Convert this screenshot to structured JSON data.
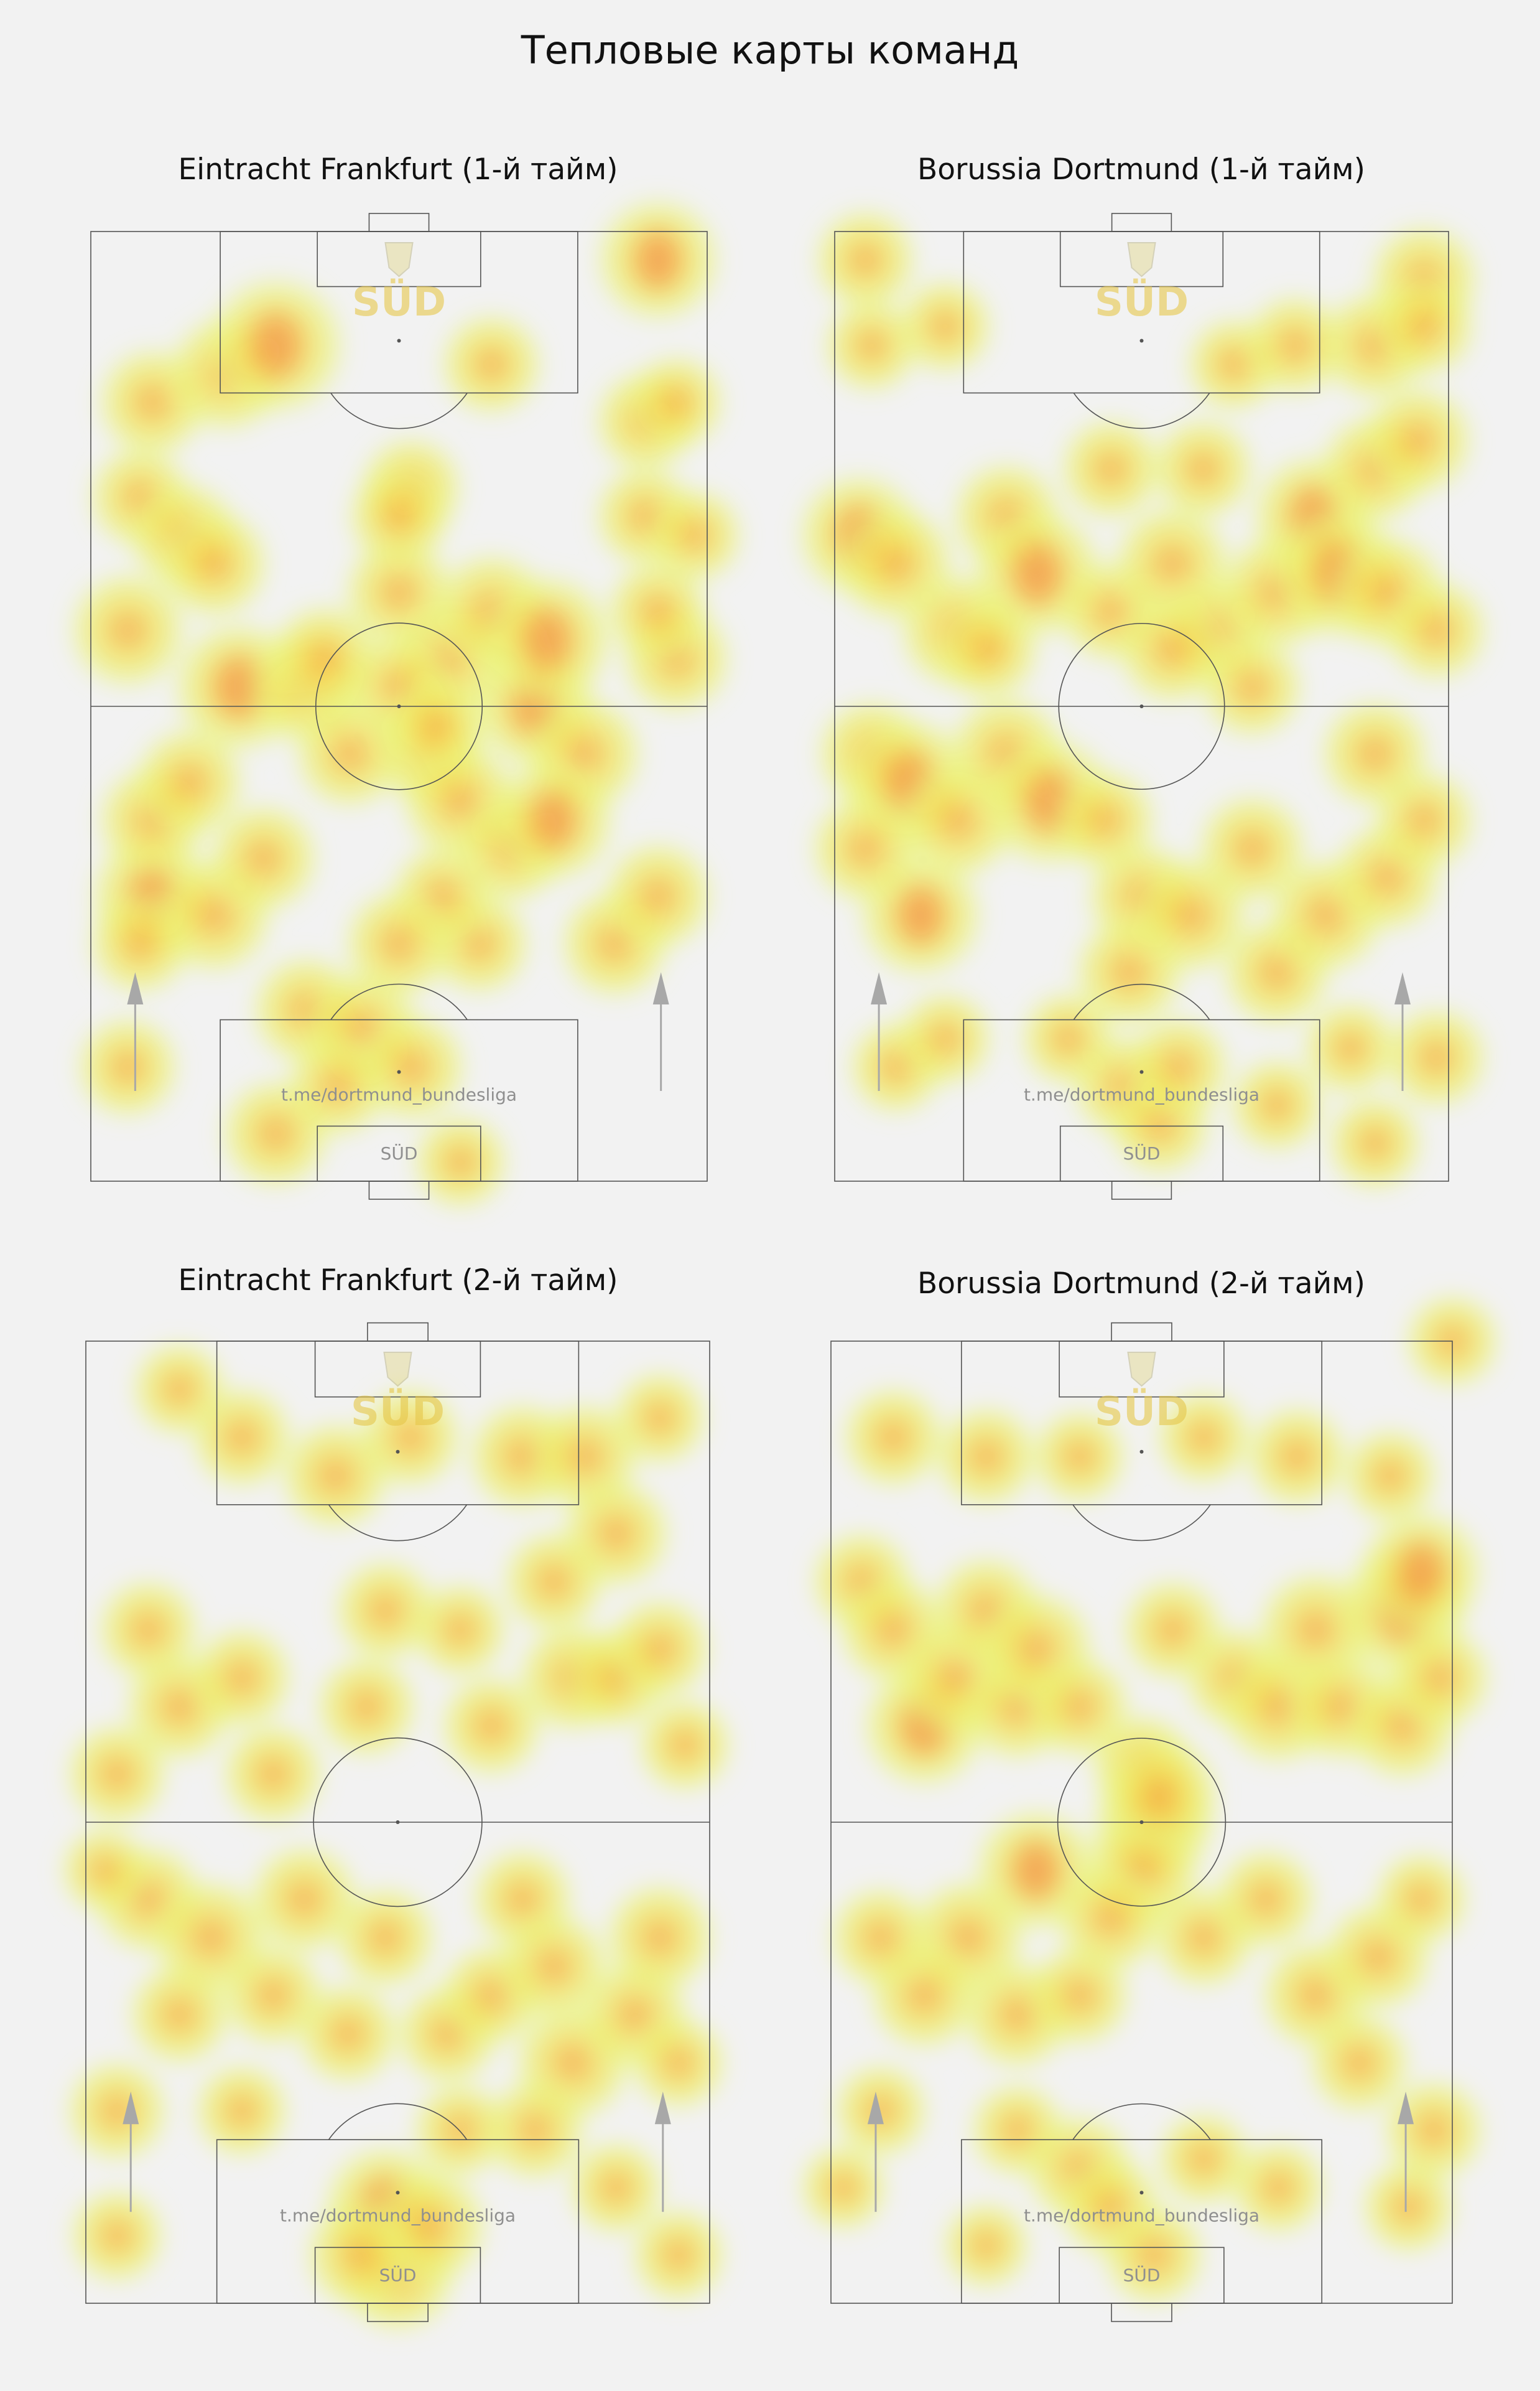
{
  "title": "Тепловые карты команд",
  "watermark": {
    "logo_text": "SÜD",
    "channel": "t.me/dortmund_bundesliga",
    "box_text": "SÜD"
  },
  "colors": {
    "background": "#f2f2f2",
    "lines": "#555555",
    "heat_low": "#eaf57a",
    "heat_mid": "#f6d84a",
    "heat_high": "#f39a4c",
    "arrow": "#a8a8a8"
  },
  "chart_data": [
    {
      "type": "heatmap",
      "title": "Eintracht Frankfurt (1-й тайм)",
      "team": "Eintracht Frankfurt",
      "half": 1,
      "xlim": [
        0,
        100
      ],
      "ylim": [
        0,
        100
      ],
      "attack_direction": "up",
      "points": [
        [
          92,
          3,
          0.8
        ],
        [
          10,
          18,
          0.6
        ],
        [
          22,
          15,
          0.7
        ],
        [
          30,
          12,
          1.0
        ],
        [
          52,
          27,
          0.5
        ],
        [
          65,
          14,
          0.5
        ],
        [
          90,
          20,
          0.5
        ],
        [
          95,
          18,
          0.4
        ],
        [
          8,
          28,
          0.5
        ],
        [
          15,
          32,
          0.6
        ],
        [
          6,
          42,
          0.7
        ],
        [
          20,
          35,
          0.6
        ],
        [
          24,
          48,
          0.9
        ],
        [
          35,
          48,
          0.7
        ],
        [
          38,
          45,
          0.6
        ],
        [
          50,
          38,
          0.6
        ],
        [
          58,
          45,
          0.7
        ],
        [
          65,
          40,
          0.7
        ],
        [
          72,
          50,
          0.8
        ],
        [
          74,
          43,
          0.9
        ],
        [
          80,
          55,
          0.7
        ],
        [
          95,
          45,
          0.6
        ],
        [
          92,
          40,
          0.5
        ],
        [
          90,
          30,
          0.5
        ],
        [
          98,
          32,
          0.4
        ],
        [
          50,
          48,
          0.6
        ],
        [
          55,
          55,
          0.6
        ],
        [
          60,
          60,
          0.7
        ],
        [
          68,
          65,
          0.6
        ],
        [
          63,
          75,
          0.5
        ],
        [
          75,
          62,
          0.8
        ],
        [
          85,
          75,
          0.6
        ],
        [
          92,
          70,
          0.6
        ],
        [
          10,
          70,
          0.8
        ],
        [
          20,
          72,
          0.7
        ],
        [
          28,
          66,
          0.6
        ],
        [
          35,
          82,
          0.6
        ],
        [
          44,
          84,
          0.7
        ],
        [
          52,
          88,
          0.6
        ],
        [
          57,
          70,
          0.5
        ],
        [
          30,
          95,
          0.6
        ],
        [
          40,
          90,
          0.5
        ],
        [
          42,
          55,
          0.6
        ],
        [
          8,
          75,
          0.5
        ],
        [
          10,
          62,
          0.6
        ],
        [
          6,
          88,
          0.5
        ],
        [
          50,
          75,
          0.6
        ],
        [
          56,
          52,
          0.5
        ],
        [
          16,
          58,
          0.6
        ],
        [
          50,
          30,
          0.5
        ],
        [
          60,
          98,
          0.4
        ]
      ]
    },
    {
      "type": "heatmap",
      "title": "Borussia Dortmund (1-й тайм)",
      "team": "Borussia Dortmund",
      "half": 1,
      "xlim": [
        0,
        100
      ],
      "ylim": [
        0,
        100
      ],
      "attack_direction": "up",
      "points": [
        [
          96,
          5,
          0.6
        ],
        [
          5,
          3,
          0.5
        ],
        [
          88,
          12,
          0.6
        ],
        [
          96,
          10,
          0.5
        ],
        [
          6,
          12,
          0.4
        ],
        [
          18,
          10,
          0.4
        ],
        [
          65,
          14,
          0.4
        ],
        [
          75,
          12,
          0.5
        ],
        [
          4,
          32,
          0.8
        ],
        [
          10,
          35,
          0.7
        ],
        [
          20,
          42,
          0.7
        ],
        [
          28,
          30,
          0.6
        ],
        [
          33,
          36,
          0.9
        ],
        [
          45,
          40,
          0.5
        ],
        [
          55,
          35,
          0.7
        ],
        [
          62,
          42,
          0.6
        ],
        [
          68,
          48,
          0.5
        ],
        [
          72,
          38,
          0.7
        ],
        [
          78,
          30,
          0.8
        ],
        [
          82,
          36,
          0.9
        ],
        [
          90,
          38,
          0.7
        ],
        [
          98,
          42,
          0.5
        ],
        [
          88,
          25,
          0.6
        ],
        [
          95,
          22,
          0.6
        ],
        [
          45,
          25,
          0.5
        ],
        [
          60,
          25,
          0.5
        ],
        [
          6,
          55,
          0.6
        ],
        [
          12,
          58,
          0.9
        ],
        [
          20,
          62,
          0.7
        ],
        [
          28,
          55,
          0.7
        ],
        [
          35,
          60,
          0.9
        ],
        [
          44,
          62,
          0.5
        ],
        [
          50,
          70,
          0.6
        ],
        [
          48,
          78,
          0.6
        ],
        [
          58,
          72,
          0.7
        ],
        [
          68,
          65,
          0.6
        ],
        [
          72,
          78,
          0.6
        ],
        [
          80,
          72,
          0.7
        ],
        [
          90,
          68,
          0.6
        ],
        [
          96,
          62,
          0.5
        ],
        [
          88,
          55,
          0.6
        ],
        [
          14,
          72,
          0.8
        ],
        [
          10,
          88,
          0.4
        ],
        [
          18,
          85,
          0.4
        ],
        [
          38,
          85,
          0.4
        ],
        [
          47,
          90,
          0.5
        ],
        [
          53,
          94,
          0.5
        ],
        [
          56,
          88,
          0.5
        ],
        [
          72,
          92,
          0.4
        ],
        [
          84,
          86,
          0.4
        ],
        [
          88,
          96,
          0.4
        ],
        [
          98,
          87,
          0.5
        ],
        [
          55,
          44,
          0.6
        ],
        [
          5,
          65,
          0.6
        ],
        [
          25,
          44,
          0.5
        ]
      ]
    },
    {
      "type": "heatmap",
      "title": "Eintracht Frankfurt (2-й тайм)",
      "team": "Eintracht Frankfurt",
      "half": 2,
      "xlim": [
        0,
        100
      ],
      "ylim": [
        0,
        100
      ],
      "attack_direction": "up",
      "points": [
        [
          25,
          10,
          0.5
        ],
        [
          15,
          5,
          0.4
        ],
        [
          40,
          14,
          0.6
        ],
        [
          52,
          10,
          0.5
        ],
        [
          70,
          12,
          0.6
        ],
        [
          80,
          12,
          0.6
        ],
        [
          92,
          8,
          0.4
        ],
        [
          85,
          20,
          0.6
        ],
        [
          75,
          25,
          0.5
        ],
        [
          10,
          30,
          0.5
        ],
        [
          15,
          38,
          0.6
        ],
        [
          5,
          45,
          0.5
        ],
        [
          25,
          35,
          0.5
        ],
        [
          30,
          45,
          0.5
        ],
        [
          45,
          38,
          0.5
        ],
        [
          48,
          28,
          0.5
        ],
        [
          60,
          30,
          0.4
        ],
        [
          65,
          40,
          0.5
        ],
        [
          78,
          35,
          0.6
        ],
        [
          85,
          35,
          0.5
        ],
        [
          92,
          32,
          0.5
        ],
        [
          96,
          42,
          0.4
        ],
        [
          10,
          58,
          0.6
        ],
        [
          20,
          62,
          0.7
        ],
        [
          15,
          70,
          0.5
        ],
        [
          30,
          68,
          0.5
        ],
        [
          35,
          58,
          0.6
        ],
        [
          42,
          72,
          0.5
        ],
        [
          48,
          62,
          0.5
        ],
        [
          58,
          72,
          0.5
        ],
        [
          65,
          68,
          0.5
        ],
        [
          70,
          58,
          0.5
        ],
        [
          75,
          65,
          0.6
        ],
        [
          78,
          75,
          0.7
        ],
        [
          88,
          70,
          0.6
        ],
        [
          92,
          62,
          0.6
        ],
        [
          95,
          75,
          0.4
        ],
        [
          72,
          82,
          0.5
        ],
        [
          85,
          88,
          0.4
        ],
        [
          5,
          80,
          0.5
        ],
        [
          5,
          93,
          0.4
        ],
        [
          48,
          90,
          0.8
        ],
        [
          50,
          97,
          0.7
        ],
        [
          55,
          92,
          0.7
        ],
        [
          44,
          95,
          0.6
        ],
        [
          95,
          95,
          0.4
        ],
        [
          60,
          82,
          0.4
        ],
        [
          25,
          80,
          0.4
        ],
        [
          3,
          55,
          0.3
        ]
      ]
    },
    {
      "type": "heatmap",
      "title": "Borussia Dortmund (2-й тайм)",
      "team": "Borussia Dortmund",
      "half": 2,
      "xlim": [
        0,
        100
      ],
      "ylim": [
        0,
        100
      ],
      "attack_direction": "up",
      "points": [
        [
          100,
          0,
          0.4
        ],
        [
          10,
          10,
          0.5
        ],
        [
          25,
          12,
          0.5
        ],
        [
          40,
          12,
          0.4
        ],
        [
          60,
          10,
          0.4
        ],
        [
          75,
          12,
          0.5
        ],
        [
          90,
          14,
          0.4
        ],
        [
          5,
          25,
          0.5
        ],
        [
          10,
          30,
          0.6
        ],
        [
          15,
          40,
          0.8
        ],
        [
          20,
          35,
          0.7
        ],
        [
          25,
          28,
          0.6
        ],
        [
          30,
          38,
          0.6
        ],
        [
          33,
          32,
          0.7
        ],
        [
          40,
          38,
          0.5
        ],
        [
          55,
          30,
          0.5
        ],
        [
          65,
          35,
          0.5
        ],
        [
          72,
          38,
          0.7
        ],
        [
          78,
          30,
          0.7
        ],
        [
          82,
          38,
          0.6
        ],
        [
          92,
          28,
          0.9
        ],
        [
          95,
          24,
          0.8
        ],
        [
          92,
          40,
          0.6
        ],
        [
          98,
          35,
          0.5
        ],
        [
          50,
          44,
          0.5
        ],
        [
          52,
          50,
          0.8
        ],
        [
          50,
          55,
          0.7
        ],
        [
          53,
          47,
          0.7
        ],
        [
          33,
          55,
          0.8
        ],
        [
          22,
          62,
          0.7
        ],
        [
          15,
          68,
          0.6
        ],
        [
          8,
          62,
          0.5
        ],
        [
          30,
          70,
          0.6
        ],
        [
          40,
          68,
          0.5
        ],
        [
          45,
          60,
          0.6
        ],
        [
          60,
          62,
          0.5
        ],
        [
          70,
          58,
          0.5
        ],
        [
          78,
          68,
          0.6
        ],
        [
          88,
          64,
          0.6
        ],
        [
          95,
          58,
          0.4
        ],
        [
          85,
          75,
          0.5
        ],
        [
          8,
          80,
          0.4
        ],
        [
          30,
          82,
          0.4
        ],
        [
          40,
          86,
          0.6
        ],
        [
          45,
          90,
          0.5
        ],
        [
          52,
          95,
          0.5
        ],
        [
          60,
          85,
          0.4
        ],
        [
          72,
          88,
          0.4
        ],
        [
          97,
          82,
          0.5
        ],
        [
          93,
          90,
          0.4
        ],
        [
          2,
          88,
          0.3
        ],
        [
          25,
          94,
          0.3
        ]
      ]
    }
  ]
}
